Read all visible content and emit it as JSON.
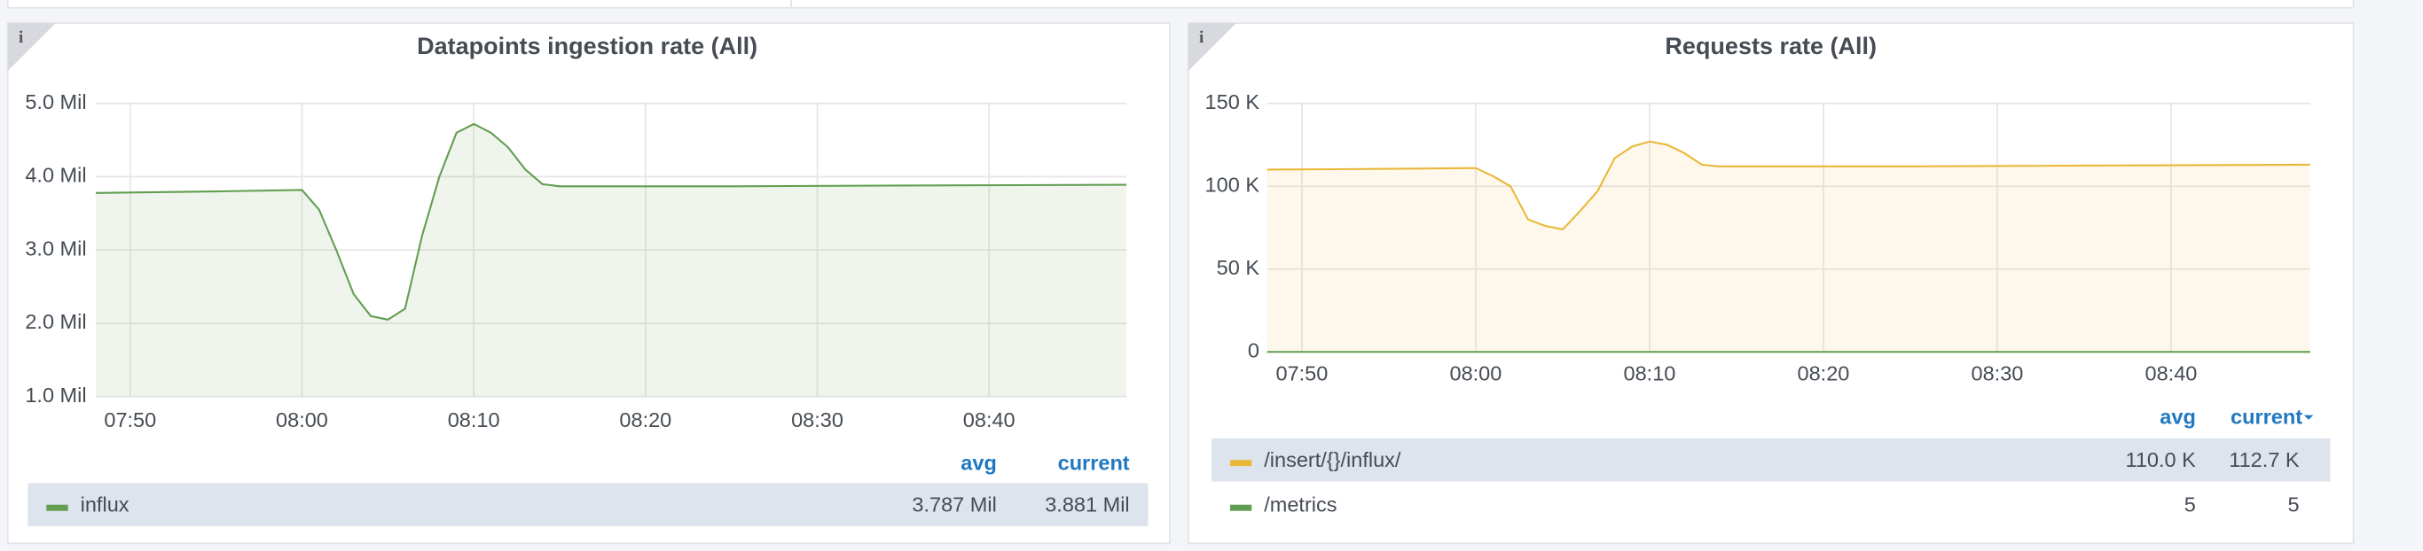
{
  "chart_data": [
    {
      "type": "line",
      "title": "Datapoints ingestion rate (All)",
      "x": [
        "07:48",
        "07:55",
        "08:00",
        "08:01",
        "08:02",
        "08:03",
        "08:04",
        "08:05",
        "08:06",
        "08:07",
        "08:08",
        "08:09",
        "08:10",
        "08:11",
        "08:12",
        "08:13",
        "08:14",
        "08:15",
        "08:25",
        "08:35",
        "08:48"
      ],
      "xlim": [
        "07:48",
        "08:48"
      ],
      "xticks": [
        "07:50",
        "08:00",
        "08:10",
        "08:20",
        "08:30",
        "08:40"
      ],
      "ylim": [
        1,
        5
      ],
      "yticks": [
        {
          "value": 1,
          "label": "1.0 Mil"
        },
        {
          "value": 2,
          "label": "2.0 Mil"
        },
        {
          "value": 3,
          "label": "3.0 Mil"
        },
        {
          "value": 4,
          "label": "4.0 Mil"
        },
        {
          "value": 5,
          "label": "5.0 Mil"
        }
      ],
      "grid": true,
      "legend_columns": [
        "avg",
        "current"
      ],
      "series": [
        {
          "name": "influx",
          "color": "#629e51",
          "fill": true,
          "values": [
            3.78,
            3.8,
            3.82,
            3.55,
            3.0,
            2.4,
            2.1,
            2.05,
            2.2,
            3.2,
            4.0,
            4.6,
            4.72,
            4.6,
            4.4,
            4.1,
            3.9,
            3.87,
            3.87,
            3.88,
            3.89
          ],
          "legend_values": [
            "3.787 Mil",
            "3.881 Mil"
          ]
        }
      ]
    },
    {
      "type": "line",
      "title": "Requests rate (All)",
      "x": [
        "07:48",
        "07:55",
        "08:00",
        "08:01",
        "08:02",
        "08:03",
        "08:04",
        "08:05",
        "08:06",
        "08:07",
        "08:08",
        "08:09",
        "08:10",
        "08:11",
        "08:12",
        "08:13",
        "08:14",
        "08:15",
        "08:25",
        "08:35",
        "08:48"
      ],
      "xlim": [
        "07:48",
        "08:48"
      ],
      "xticks": [
        "07:50",
        "08:00",
        "08:10",
        "08:20",
        "08:30",
        "08:40"
      ],
      "ylim": [
        0,
        150
      ],
      "yticks": [
        0,
        {
          "value": 50,
          "label": "50 K"
        },
        {
          "value": 100,
          "label": "100 K"
        },
        {
          "value": 150,
          "label": "150 K"
        }
      ],
      "grid": true,
      "legend_columns": [
        "avg",
        "current"
      ],
      "series": [
        {
          "name": "/insert/{}/influx/",
          "color": "#eab839",
          "fill": true,
          "values": [
            110,
            110.5,
            111,
            106,
            100,
            80,
            76,
            74,
            85,
            97,
            117,
            124,
            127,
            125,
            120,
            113,
            112,
            112,
            112,
            112.5,
            113
          ],
          "legend_values": [
            "110.0 K",
            "112.7 K"
          ]
        },
        {
          "name": "/metrics",
          "color": "#629e51",
          "fill": false,
          "values": [
            0.005,
            0.005,
            0.005,
            0.005,
            0.005,
            0.005,
            0.005,
            0.005,
            0.005,
            0.005,
            0.005,
            0.005,
            0.005,
            0.005,
            0.005,
            0.005,
            0.005,
            0.005,
            0.005,
            0.005,
            0.005
          ],
          "legend_values": [
            "5",
            "5"
          ]
        }
      ]
    }
  ]
}
